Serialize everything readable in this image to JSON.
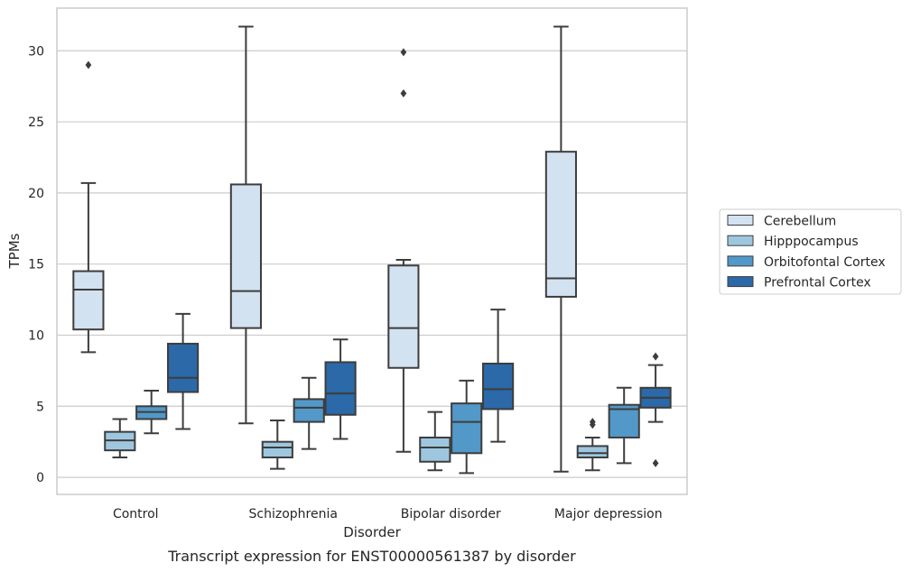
{
  "chart_data": {
    "type": "boxplot",
    "caption": "Transcript expression for ENST00000561387 by disorder",
    "xlabel": "Disorder",
    "ylabel": "TPMs",
    "ylim": [
      -1.2,
      33.0
    ],
    "yticks": [
      0,
      5,
      10,
      15,
      20,
      25,
      30
    ],
    "grid": "horizontal",
    "legend_position": "right",
    "categories": [
      "Control",
      "Schizophrenia",
      "Bipolar disorder",
      "Major depression"
    ],
    "series": [
      {
        "name": "Cerebellum",
        "color": "#d3e2f1",
        "boxes": [
          {
            "whislo": 8.8,
            "q1": 10.4,
            "med": 13.2,
            "q3": 14.5,
            "whishi": 20.7,
            "fliers": [
              29.0
            ]
          },
          {
            "whislo": 3.8,
            "q1": 10.5,
            "med": 13.1,
            "q3": 20.6,
            "whishi": 31.7,
            "fliers": []
          },
          {
            "whislo": 1.8,
            "q1": 7.7,
            "med": 10.5,
            "q3": 14.9,
            "whishi": 15.3,
            "fliers": [
              27.0,
              29.9
            ]
          },
          {
            "whislo": 0.4,
            "q1": 12.7,
            "med": 14.0,
            "q3": 22.9,
            "whishi": 31.7,
            "fliers": []
          }
        ]
      },
      {
        "name": "Hipppocampus",
        "color": "#9ec7df",
        "boxes": [
          {
            "whislo": 1.4,
            "q1": 1.9,
            "med": 2.6,
            "q3": 3.2,
            "whishi": 4.1,
            "fliers": []
          },
          {
            "whislo": 0.6,
            "q1": 1.4,
            "med": 2.1,
            "q3": 2.5,
            "whishi": 4.0,
            "fliers": []
          },
          {
            "whislo": 0.5,
            "q1": 1.1,
            "med": 2.1,
            "q3": 2.8,
            "whishi": 4.6,
            "fliers": []
          },
          {
            "whislo": 0.5,
            "q1": 1.4,
            "med": 1.7,
            "q3": 2.2,
            "whishi": 2.8,
            "fliers": [
              3.7,
              3.9
            ]
          }
        ]
      },
      {
        "name": "Orbitofontal Cortex",
        "color": "#5298c8",
        "boxes": [
          {
            "whislo": 3.1,
            "q1": 4.1,
            "med": 4.6,
            "q3": 5.0,
            "whishi": 6.1,
            "fliers": []
          },
          {
            "whislo": 2.0,
            "q1": 3.9,
            "med": 4.9,
            "q3": 5.5,
            "whishi": 7.0,
            "fliers": []
          },
          {
            "whislo": 0.3,
            "q1": 1.7,
            "med": 3.9,
            "q3": 5.2,
            "whishi": 6.8,
            "fliers": []
          },
          {
            "whislo": 1.0,
            "q1": 2.8,
            "med": 4.8,
            "q3": 5.1,
            "whishi": 6.3,
            "fliers": []
          }
        ]
      },
      {
        "name": "Prefrontal Cortex",
        "color": "#2b69a8",
        "boxes": [
          {
            "whislo": 3.4,
            "q1": 6.0,
            "med": 7.0,
            "q3": 9.4,
            "whishi": 11.5,
            "fliers": []
          },
          {
            "whislo": 2.7,
            "q1": 4.4,
            "med": 5.9,
            "q3": 8.1,
            "whishi": 9.7,
            "fliers": []
          },
          {
            "whislo": 2.5,
            "q1": 4.8,
            "med": 6.2,
            "q3": 8.0,
            "whishi": 11.8,
            "fliers": []
          },
          {
            "whislo": 3.9,
            "q1": 4.9,
            "med": 5.6,
            "q3": 6.3,
            "whishi": 7.9,
            "fliers": [
              1.0,
              8.5
            ]
          }
        ]
      }
    ]
  }
}
